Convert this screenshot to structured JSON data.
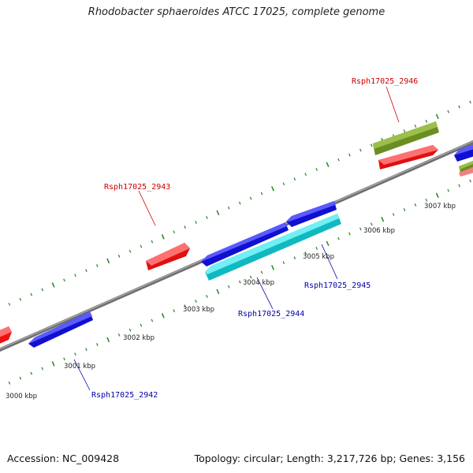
{
  "title": "Rhodobacter sphaeroides ATCC 17025, complete genome",
  "footer": {
    "accession": "Accession: NC_009428",
    "stats": "Topology: circular; Length: 3,217,726 bp; Genes: 3,156"
  },
  "colors": {
    "backbone": "#8a8a8a",
    "tick": "#2e8b2e",
    "forward_gene": "#ee1111",
    "reverse_gene": "#1111dd",
    "cyan_gene": "#19c8d0",
    "olive_gene": "#6b8e23",
    "pink_gene": "#f08080",
    "forward_label": "#cc0000",
    "reverse_label": "#0000aa"
  },
  "kbp_labels": [
    "3000 kbp",
    "3001 kbp",
    "3002 kbp",
    "3003 kbp",
    "3004 kbp",
    "3005 kbp",
    "3006 kbp",
    "3007 kbp"
  ],
  "gene_labels": {
    "g2942": "Rsph17025_2942",
    "g2943": "Rsph17025_2943",
    "g2944": "Rsph17025_2944",
    "g2945": "Rsph17025_2945",
    "g2946": "Rsph17025_2946"
  }
}
